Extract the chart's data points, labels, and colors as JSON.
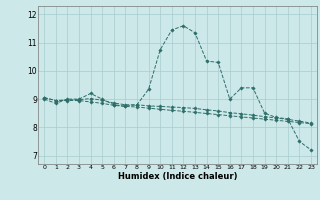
{
  "xlabel": "Humidex (Indice chaleur)",
  "background_color": "#cce8e8",
  "grid_color": "#a8cccc",
  "line_color": "#2e6e6a",
  "xlim": [
    -0.5,
    23.5
  ],
  "ylim": [
    6.7,
    12.3
  ],
  "yticks": [
    7,
    8,
    9,
    10,
    11,
    12
  ],
  "xticks": [
    0,
    1,
    2,
    3,
    4,
    5,
    6,
    7,
    8,
    9,
    10,
    11,
    12,
    13,
    14,
    15,
    16,
    17,
    18,
    19,
    20,
    21,
    22,
    23
  ],
  "line1_x": [
    0,
    1,
    2,
    3,
    4,
    5,
    6,
    7,
    8,
    9,
    10,
    11,
    12,
    13,
    14,
    15,
    16,
    17,
    18,
    19,
    20,
    21,
    22,
    23
  ],
  "line1_y": [
    9.0,
    8.85,
    9.0,
    9.0,
    9.2,
    9.0,
    8.8,
    8.75,
    8.8,
    9.35,
    10.75,
    11.45,
    11.6,
    11.35,
    10.35,
    10.3,
    9.0,
    9.4,
    9.4,
    8.5,
    8.35,
    8.3,
    7.5,
    7.2
  ],
  "line2_x": [
    0,
    1,
    2,
    3,
    4,
    5,
    6,
    7,
    8,
    9,
    10,
    11,
    12,
    13,
    14,
    15,
    16,
    17,
    18,
    19,
    20,
    21,
    22,
    23
  ],
  "line2_y": [
    9.05,
    8.95,
    8.95,
    8.95,
    8.9,
    8.85,
    8.78,
    8.74,
    8.72,
    8.68,
    8.64,
    8.6,
    8.57,
    8.53,
    8.49,
    8.45,
    8.41,
    8.37,
    8.33,
    8.29,
    8.25,
    8.21,
    8.17,
    8.13
  ],
  "line3_x": [
    0,
    1,
    2,
    3,
    4,
    5,
    6,
    7,
    8,
    9,
    10,
    11,
    12,
    13,
    14,
    15,
    16,
    17,
    18,
    19,
    20,
    21,
    22,
    23
  ],
  "line3_y": [
    9.05,
    8.95,
    8.97,
    8.98,
    9.02,
    8.96,
    8.86,
    8.8,
    8.8,
    8.76,
    8.74,
    8.72,
    8.7,
    8.67,
    8.62,
    8.58,
    8.52,
    8.48,
    8.43,
    8.38,
    8.33,
    8.28,
    8.22,
    8.15
  ]
}
